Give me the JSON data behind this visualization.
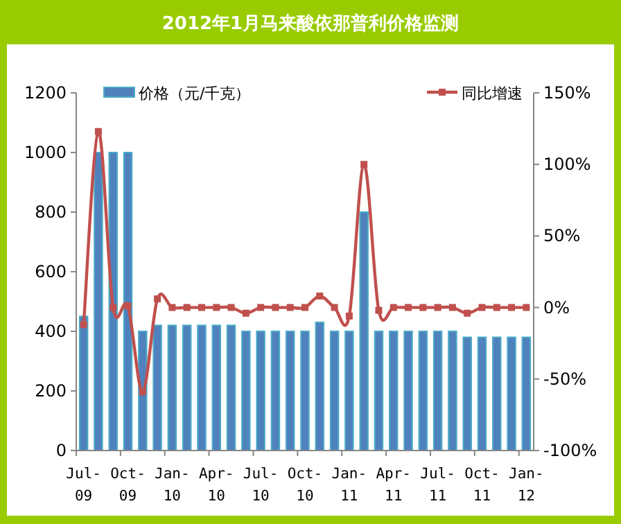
{
  "chart_data": {
    "type": "bar",
    "title": "2012年1月马来酸依那普利价格监测",
    "categories": [
      "Jul-09",
      null,
      null,
      "Oct-09",
      null,
      null,
      "Jan-10",
      null,
      null,
      "Apr-10",
      null,
      null,
      "Jul-10",
      null,
      null,
      "Oct-10",
      null,
      null,
      "Jan-11",
      null,
      null,
      "Apr-11",
      null,
      null,
      "Jul-11",
      null,
      null,
      "Oct-11",
      null,
      null,
      "Jan-12"
    ],
    "series": [
      {
        "name": "价格（元/千克）",
        "color": "#4f81bd",
        "values": [
          450,
          1000,
          1000,
          1000,
          400,
          420,
          420,
          420,
          420,
          420,
          420,
          400,
          400,
          400,
          400,
          400,
          430,
          400,
          400,
          800,
          400,
          400,
          400,
          400,
          400,
          400,
          380,
          380,
          380,
          380,
          380
        ]
      },
      {
        "name": "同比增速",
        "type": "line",
        "axis": "y2",
        "color": "#c0504d",
        "values": [
          -12,
          123,
          0,
          1,
          -59,
          6,
          0,
          0,
          0,
          0,
          0,
          -4,
          0,
          0,
          0,
          0,
          8,
          0,
          -6,
          100,
          -2,
          0,
          0,
          0,
          0,
          0,
          -4,
          0,
          0,
          0,
          0
        ]
      }
    ],
    "ylim": [
      0,
      1200
    ],
    "yticks": [
      0,
      200,
      400,
      600,
      800,
      1000,
      1200
    ],
    "y2lim": [
      -100,
      150
    ],
    "y2ticks": [
      {
        "value": -100,
        "label": "-100%"
      },
      {
        "value": -50,
        "label": "-50%"
      },
      {
        "value": 0,
        "label": "0%"
      },
      {
        "value": 50,
        "label": "50%"
      },
      {
        "value": 100,
        "label": "100%"
      },
      {
        "value": 150,
        "label": "150%"
      }
    ],
    "legend": "top",
    "grid": false,
    "marker": "square",
    "line_style": "solid"
  }
}
